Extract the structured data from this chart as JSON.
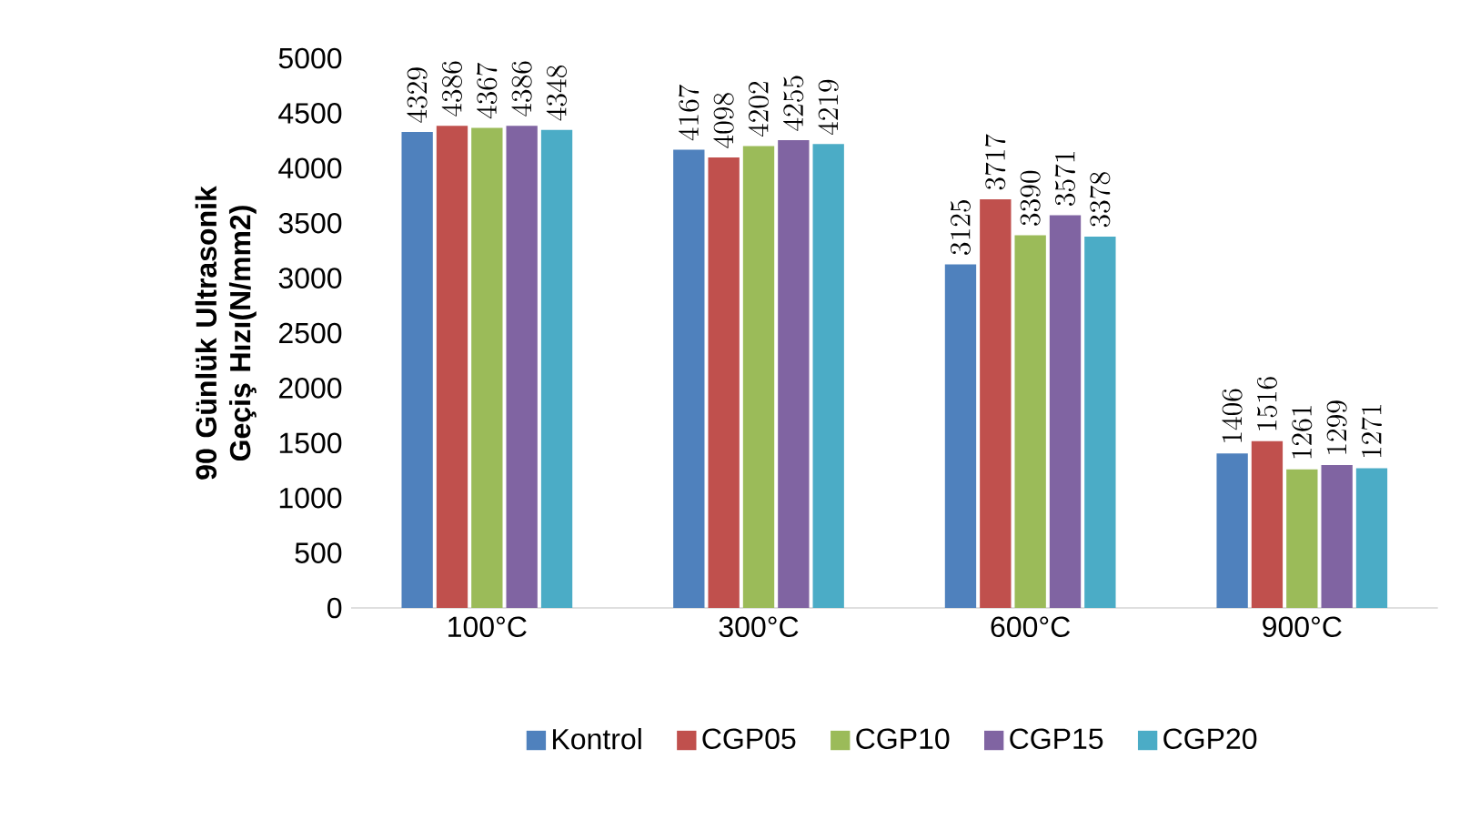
{
  "chart_data": {
    "type": "bar",
    "ylabel": "90 Günlük Ultrasonik Geçiş Hızı(N/mm2)",
    "categories": [
      "100°C",
      "300°C",
      "600°C",
      "900°C"
    ],
    "series": [
      {
        "name": "Kontrol",
        "color": "#4f81bd",
        "values": [
          4329,
          4167,
          3125,
          1406
        ]
      },
      {
        "name": "CGP05",
        "color": "#c0504d",
        "values": [
          4386,
          4098,
          3717,
          1516
        ]
      },
      {
        "name": "CGP10",
        "color": "#9bbb59",
        "values": [
          4367,
          4202,
          3390,
          1261
        ]
      },
      {
        "name": "CGP15",
        "color": "#8064a2",
        "values": [
          4386,
          4255,
          3571,
          1299
        ]
      },
      {
        "name": "CGP20",
        "color": "#4bacc6",
        "values": [
          4348,
          4219,
          3378,
          1271
        ]
      }
    ],
    "ylim": [
      0,
      5000
    ],
    "yticks": [
      0,
      500,
      1000,
      1500,
      2000,
      2500,
      3000,
      3500,
      4000,
      4500,
      5000
    ],
    "data_labels": true,
    "legend": "bottom",
    "grid": false
  }
}
